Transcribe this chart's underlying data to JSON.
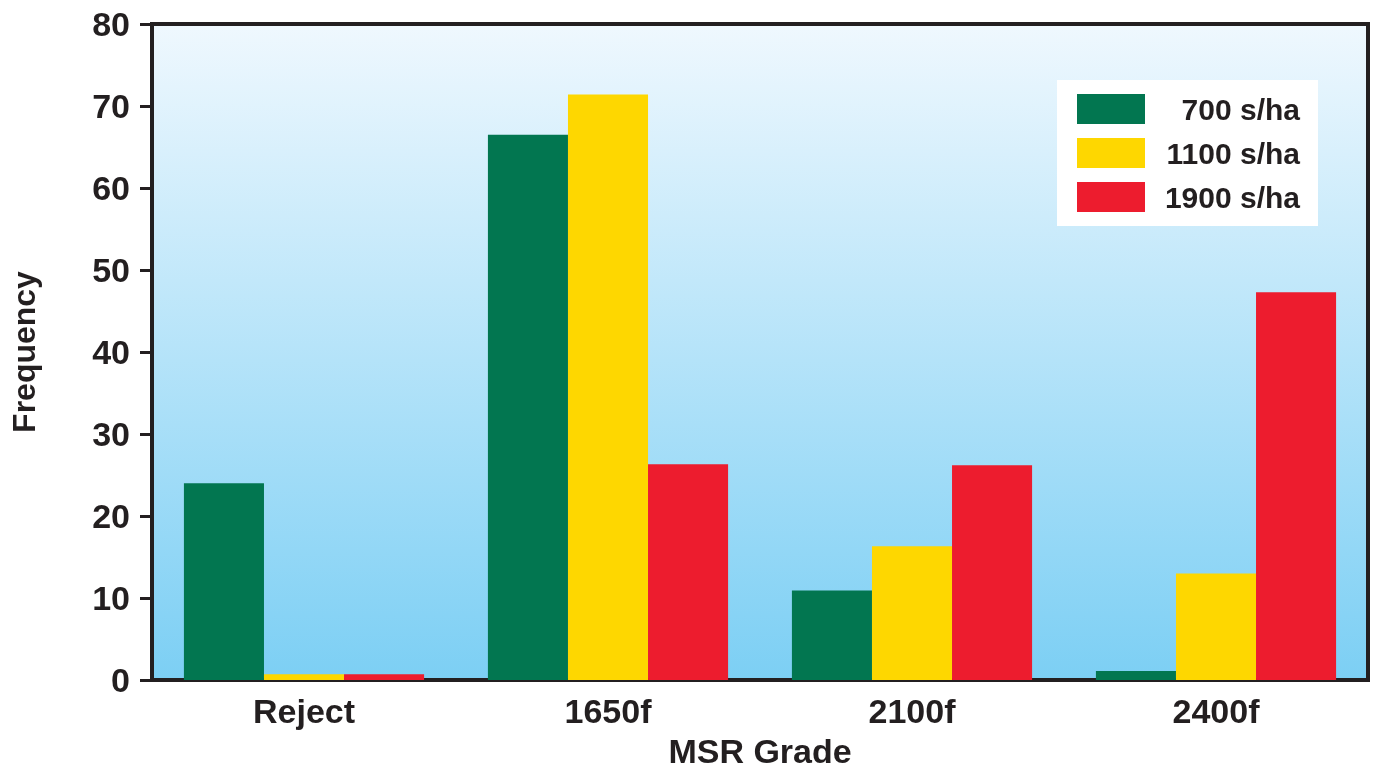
{
  "chart_data": {
    "type": "bar",
    "xlabel": "MSR Grade",
    "ylabel": "Frequency",
    "categories": [
      "Reject",
      "1650f",
      "2100f",
      "2400f"
    ],
    "series": [
      {
        "name": "700 s/ha",
        "color": "#027650",
        "values": [
          24,
          66.5,
          10.9,
          1.1
        ]
      },
      {
        "name": "1100 s/ha",
        "color": "#fed700",
        "values": [
          0.7,
          71.4,
          16.3,
          13
        ]
      },
      {
        "name": "1900 s/ha",
        "color": "#ed1c2e",
        "values": [
          0.7,
          26.3,
          26.2,
          47.3
        ]
      }
    ],
    "ylim": [
      0,
      80
    ],
    "yticks": [
      0,
      10,
      20,
      30,
      40,
      50,
      60,
      70,
      80
    ],
    "grid": false,
    "legend": "top right"
  }
}
